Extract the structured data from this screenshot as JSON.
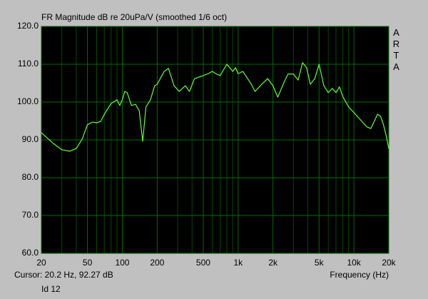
{
  "chart_data": {
    "type": "line",
    "title": "FR Magnitude dB re 20uPa/V (smoothed 1/6 oct)",
    "x_label": "Frequency (Hz)",
    "watermark": "ARTA",
    "cursor": "Cursor: 20.2 Hz, 92.27 dB",
    "id_label": "Id 12",
    "log_x": true,
    "grid": true,
    "background": "#000000",
    "grid_color": "#006e00",
    "minor_grid_color": "#004a00",
    "xlim": [
      20,
      20000
    ],
    "ylim": [
      60,
      120
    ],
    "xticks": [
      20,
      50,
      100,
      200,
      500,
      {
        "value": 1000,
        "label": "1k"
      },
      {
        "value": 2000,
        "label": "2k"
      },
      {
        "value": 5000,
        "label": "5k"
      },
      {
        "value": 10000,
        "label": "10k"
      },
      {
        "value": 20000,
        "label": "20k"
      }
    ],
    "minor_xticks": [
      30,
      40,
      60,
      70,
      80,
      90,
      300,
      400,
      600,
      700,
      800,
      900,
      3000,
      4000,
      6000,
      7000,
      8000,
      9000
    ],
    "yticks": [
      {
        "value": 60,
        "label": "60.0"
      },
      {
        "value": 70,
        "label": "70.0"
      },
      {
        "value": 80,
        "label": "80.0"
      },
      {
        "value": 90,
        "label": "90.0"
      },
      {
        "value": 100,
        "label": "100.0"
      },
      {
        "value": 110,
        "label": "110.0"
      },
      {
        "value": 120,
        "label": "120.0"
      }
    ],
    "x": [
      20,
      25,
      30,
      35,
      40,
      45,
      50,
      55,
      60,
      65,
      70,
      80,
      90,
      95,
      100,
      105,
      110,
      120,
      130,
      140,
      150,
      160,
      175,
      190,
      200,
      230,
      250,
      280,
      310,
      350,
      380,
      420,
      500,
      550,
      600,
      650,
      700,
      800,
      900,
      950,
      1000,
      1100,
      1300,
      1400,
      1600,
      1800,
      2000,
      2200,
      2500,
      2700,
      3000,
      3300,
      3600,
      3900,
      4200,
      4600,
      5000,
      5500,
      6000,
      6500,
      7000,
      7500,
      8000,
      9000,
      10000,
      11000,
      12000,
      13000,
      14000,
      15000,
      16000,
      17000,
      18000,
      19000,
      20000
    ],
    "series": [
      {
        "color": "#66ff33",
        "values": [
          91.9,
          89.2,
          87.4,
          87.0,
          87.7,
          90.2,
          94.0,
          94.7,
          94.5,
          94.9,
          96.8,
          99.6,
          100.6,
          99.1,
          100.6,
          102.8,
          102.5,
          99.1,
          99.4,
          97.7,
          89.6,
          98.7,
          100.6,
          104.3,
          104.7,
          108.1,
          108.9,
          104.3,
          102.8,
          104.3,
          102.8,
          106.2,
          107.0,
          107.5,
          108.1,
          107.4,
          107.0,
          110.0,
          108.1,
          109.1,
          107.5,
          108.1,
          104.7,
          102.8,
          104.7,
          106.2,
          104.3,
          101.3,
          105.3,
          107.4,
          107.4,
          105.8,
          110.4,
          109.1,
          104.7,
          106.2,
          110.0,
          104.3,
          102.5,
          103.6,
          102.5,
          104.0,
          101.5,
          98.7,
          97.2,
          95.8,
          94.5,
          93.4,
          93.0,
          94.9,
          96.8,
          96.2,
          94.0,
          91.1,
          87.7
        ]
      }
    ]
  }
}
